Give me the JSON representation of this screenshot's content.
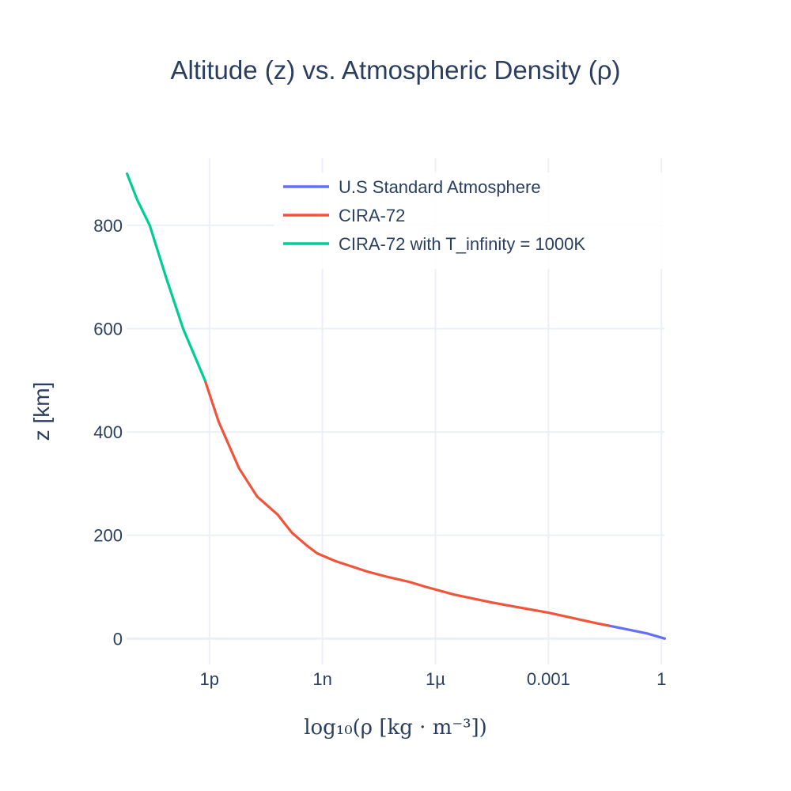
{
  "chart_data": {
    "type": "line",
    "title": "Altitude (z) vs. Atmospheric Density (ρ)",
    "xlabel": "log₁₀(ρ [kg · m⁻³])",
    "ylabel": "z [km]",
    "x_scale": "log",
    "x_tick_labels": [
      "1p",
      "1n",
      "1µ",
      "0.001",
      "1"
    ],
    "x_tick_values": [
      1e-12,
      1e-09,
      1e-06,
      0.001,
      1
    ],
    "y_tick_labels": [
      "0",
      "200",
      "400",
      "600",
      "800"
    ],
    "y_tick_values": [
      0,
      200,
      400,
      600,
      800
    ],
    "xlim": [
      6.3e-15,
      1.2
    ],
    "ylim": [
      -50,
      930
    ],
    "grid": true,
    "legend_position": "top-right",
    "series": [
      {
        "name": "U.S Standard Atmosphere",
        "color": "#636efa",
        "x": [
          1.225,
          0.414,
          0.0889,
          0.0401
        ],
        "z": [
          0,
          10,
          20,
          25
        ]
      },
      {
        "name": "CIRA-72",
        "color": "#ef553b",
        "x": [
          0.0401,
          0.0184,
          0.00103,
          3.06e-05,
          3.2e-06,
          5.6e-07,
          1.97e-07,
          5e-08,
          1.5e-08,
          2.2e-09,
          7.3e-10,
          3.86e-10,
          1.55e-10,
          6.45e-11,
          1.85e-11,
          6.08e-12,
          1.75e-12,
          7.6e-13
        ],
        "z": [
          25,
          30,
          50,
          70,
          85,
          100,
          110,
          120,
          130,
          150,
          165,
          180,
          205,
          240,
          275,
          330,
          420,
          500
        ]
      },
      {
        "name": "CIRA-72 with T_infinity = 1000K",
        "color": "#00cc96",
        "x": [
          7.6e-13,
          2e-13,
          7e-14,
          2.6e-14,
          1.2e-14,
          6.5e-15
        ],
        "z": [
          500,
          600,
          700,
          800,
          850,
          900
        ]
      }
    ]
  }
}
